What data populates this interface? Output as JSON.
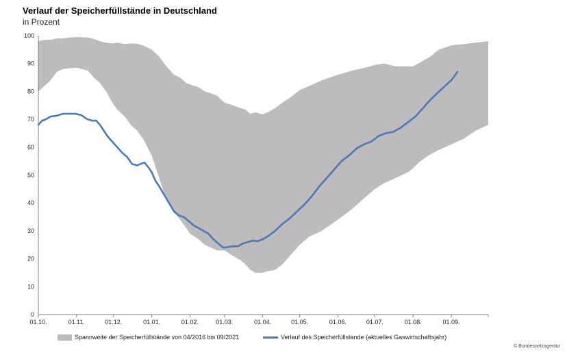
{
  "header": {
    "title": "Verlauf der Speicherfüllstände in Deutschland",
    "subtitle": "in Prozent"
  },
  "legend": {
    "range_label": "Spannweite der Speicherfüllstände von 04/2016 bis 09/2021",
    "line_label": "Verlauf des Speicherfüllstande (aktuelles Gaswirtschaftsjahr)"
  },
  "credit": "© Bundesnetzagentur",
  "colors": {
    "range": "#bdbbbc",
    "line": "#4a78b8",
    "axis": "#808080"
  },
  "chart_data": {
    "type": "area",
    "x_unit": "days from 01.10.",
    "xlim": [
      0,
      365
    ],
    "ylim": [
      0,
      100
    ],
    "y_ticks": [
      0,
      10,
      20,
      30,
      40,
      50,
      60,
      70,
      80,
      90,
      100
    ],
    "x_ticks": [
      {
        "label": "01.10.",
        "day": 0
      },
      {
        "label": "01.11.",
        "day": 31
      },
      {
        "label": "01.12.",
        "day": 61
      },
      {
        "label": "01.01.",
        "day": 92
      },
      {
        "label": "01.02.",
        "day": 123
      },
      {
        "label": "01.03.",
        "day": 151
      },
      {
        "label": "01.04.",
        "day": 182
      },
      {
        "label": "01.05.",
        "day": 212
      },
      {
        "label": "01.06.",
        "day": 243
      },
      {
        "label": "01.07.",
        "day": 273
      },
      {
        "label": "01.08.",
        "day": 304
      },
      {
        "label": "01.09.",
        "day": 335
      }
    ],
    "series": [
      {
        "kind": "range",
        "x": [
          0,
          5,
          10,
          15,
          20,
          25,
          31,
          40,
          45,
          50,
          55,
          60,
          64,
          70,
          75,
          80,
          85,
          92,
          98,
          103,
          110,
          115,
          120,
          123,
          130,
          135,
          140,
          145,
          151,
          158,
          164,
          168,
          172,
          176,
          180,
          182,
          186,
          192,
          198,
          205,
          212,
          220,
          230,
          243,
          255,
          265,
          273,
          280,
          290,
          300,
          304,
          310,
          318,
          325,
          335,
          345,
          355,
          365
        ],
        "upper": [
          98,
          98.5,
          98.5,
          99,
          99,
          99.3,
          99.5,
          99.3,
          98.8,
          98,
          97.5,
          97.2,
          97.5,
          97,
          97.2,
          97.1,
          96.5,
          95,
          92.5,
          89.5,
          86,
          85,
          83,
          82.5,
          81.5,
          80,
          79.3,
          78.5,
          76,
          75,
          74,
          73.5,
          72,
          72.5,
          72,
          71.8,
          72.5,
          74,
          76,
          78,
          80.5,
          82,
          84,
          86,
          87.5,
          88.5,
          89.5,
          90,
          89,
          89,
          89,
          90.5,
          92.5,
          95,
          96.5,
          97,
          97.5,
          98
        ],
        "lower": [
          80,
          82,
          84,
          87,
          88,
          88.3,
          88.5,
          87.5,
          85,
          83,
          80,
          76,
          73.5,
          71,
          68,
          66,
          63,
          57,
          49,
          42,
          37,
          34,
          31,
          29,
          27,
          25,
          24,
          23,
          23,
          21,
          19.5,
          18,
          16,
          15,
          15,
          15,
          15.5,
          16,
          18,
          21.5,
          25,
          28,
          30,
          34,
          38,
          42,
          45,
          47,
          49,
          51,
          52.5,
          55,
          57.5,
          59,
          61,
          63,
          66,
          68
        ]
      },
      {
        "name": "Verlauf des Speicherfüllstande (aktuelles Gaswirtschaftsjahr)",
        "kind": "line",
        "x": [
          0,
          3,
          6,
          10,
          15,
          20,
          25,
          30,
          35,
          38,
          40,
          44,
          47,
          50,
          53,
          56,
          60,
          64,
          68,
          72,
          76,
          80,
          83,
          86,
          89,
          92,
          95,
          98,
          102,
          106,
          110,
          114,
          118,
          122,
          126,
          130,
          134,
          138,
          142,
          146,
          150,
          154,
          158,
          162,
          166,
          170,
          174,
          178,
          182,
          186,
          192,
          198,
          204,
          210,
          216,
          222,
          228,
          234,
          240,
          246,
          252,
          258,
          264,
          270,
          276,
          282,
          288,
          294,
          300,
          306,
          312,
          318,
          324,
          330,
          335,
          340
        ],
        "values": [
          68,
          69.5,
          70,
          71,
          71.3,
          72,
          72,
          72,
          71.5,
          70.5,
          70,
          69.5,
          69.5,
          68,
          66,
          64,
          62,
          60,
          58,
          56.5,
          54,
          53.5,
          54,
          54.5,
          53,
          51,
          48,
          46,
          43,
          40,
          37,
          35.5,
          35,
          33.5,
          32,
          31,
          30,
          29,
          27,
          25.5,
          24,
          24.2,
          24.5,
          24.5,
          25.5,
          26,
          26.5,
          26.3,
          27,
          28,
          30,
          32.5,
          34.5,
          37,
          39.5,
          42.5,
          46,
          49,
          52,
          55,
          57,
          59.5,
          61,
          62,
          64,
          65,
          65.5,
          67,
          69,
          71,
          74,
          77,
          79.5,
          82,
          84,
          87
        ]
      }
    ]
  }
}
